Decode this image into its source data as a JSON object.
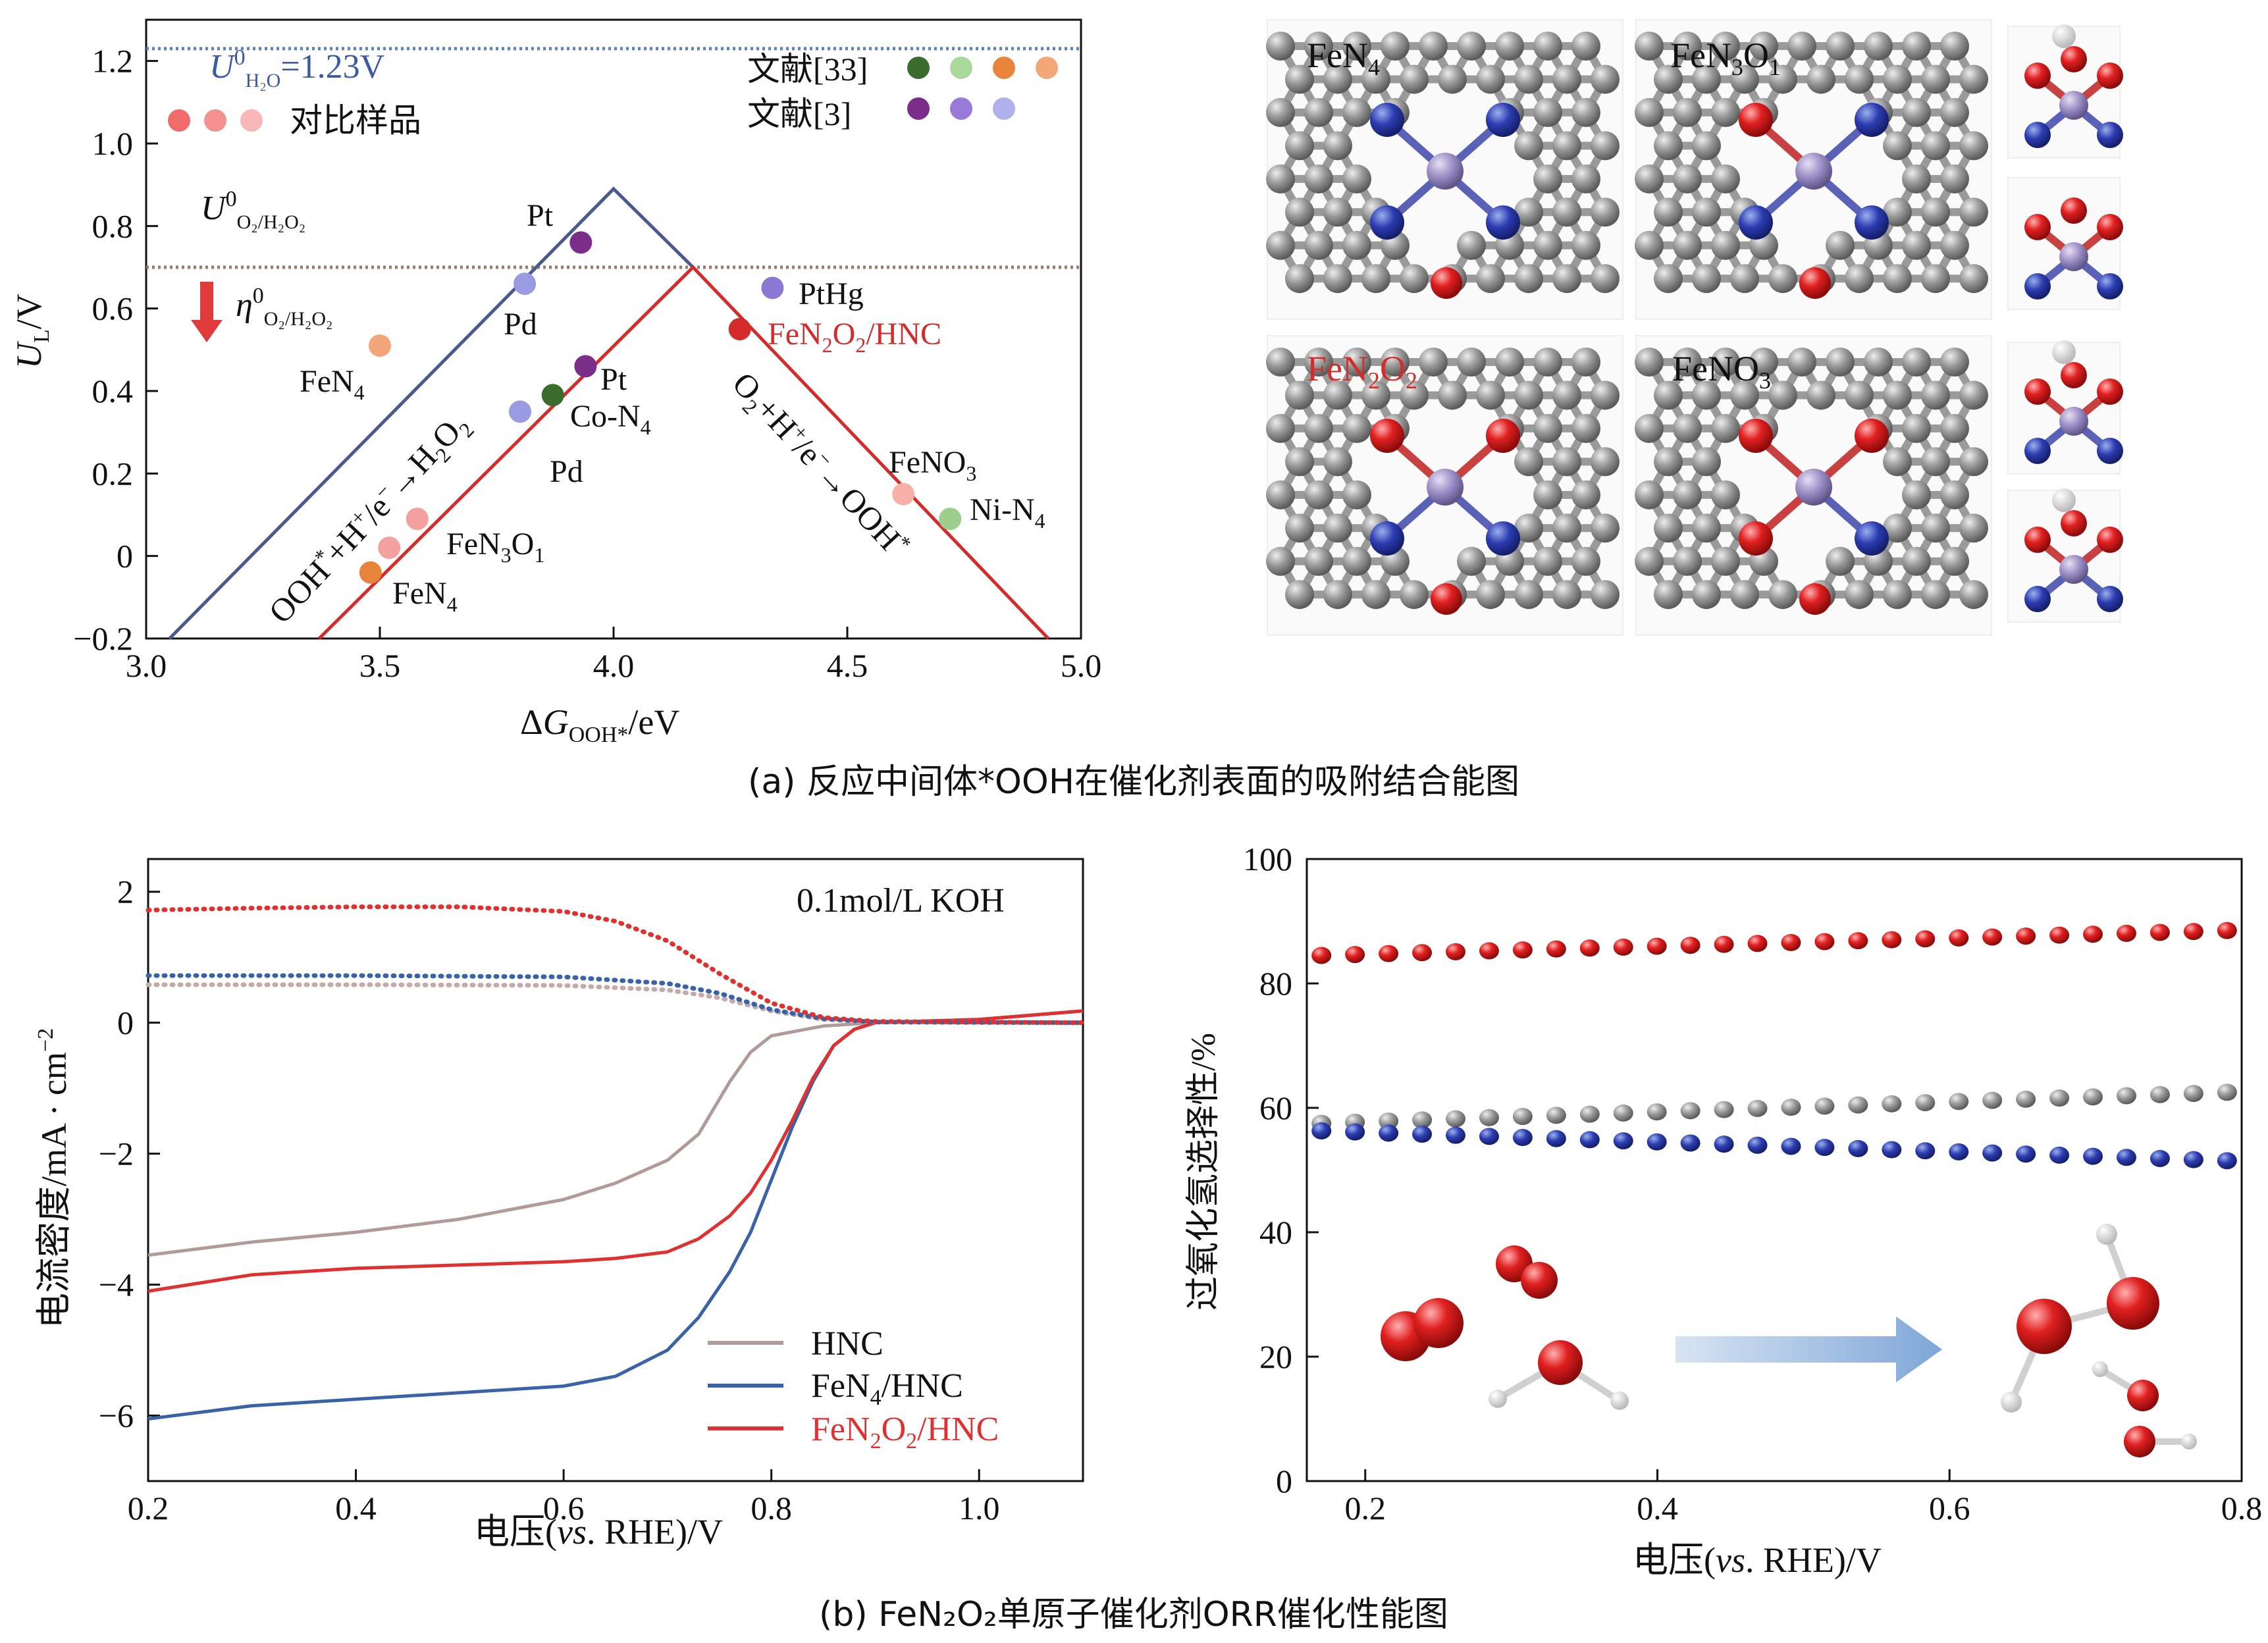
{
  "panel_a": {
    "caption": "(a) 反应中间体*OOH在催化剂表面的吸附结合能图",
    "top_line_label": "U⁰H₂O=1.23V",
    "mid_line_label": "U⁰O₂/H₂O₂",
    "eta_label": "η⁰O₂/H₂O₂",
    "legend": {
      "compare": "对比样品",
      "ref33": "文献[33]",
      "ref3": "文献[3]"
    },
    "line_labels": {
      "left": "OOH*+H⁺/e⁻→H₂O₂",
      "right": "O₂+H⁺/e⁻→OOH*"
    },
    "structures": {
      "s1": "FeN4",
      "s2": "FeN3O1",
      "s3": "FeN2O2",
      "s4": "FeNO3"
    }
  },
  "panel_b": {
    "caption": "(b) FeN₂O₂单原子催化剂ORR催化性能图",
    "annotation": "0.1mol/L KOH"
  },
  "chart_data": [
    {
      "type": "scatter",
      "xlabel": "ΔGOOH*/eV",
      "ylabel": "UL/V",
      "xlim": [
        3.0,
        5.0
      ],
      "ylim": [
        -0.2,
        1.3
      ],
      "xticks": [
        "3.0",
        "3.5",
        "4.0",
        "4.5",
        "5.0"
      ],
      "yticks": [
        "−0.2",
        "0",
        "0.2",
        "0.4",
        "0.6",
        "0.8",
        "1.0",
        "1.2"
      ],
      "reference_lines": [
        {
          "y": 1.23,
          "color": "#5b7fc0"
        },
        {
          "y": 0.7,
          "color": "#9a7a70"
        }
      ],
      "volcano_lines": [
        {
          "name": "blue",
          "color": "#4a5a8c",
          "points": [
            [
              3.05,
              -0.2
            ],
            [
              4.0,
              0.89
            ],
            [
              4.17,
              0.7
            ]
          ]
        },
        {
          "name": "red",
          "color": "#d42b2b",
          "points": [
            [
              3.37,
              -0.2
            ],
            [
              4.17,
              0.7
            ],
            [
              4.93,
              -0.2
            ]
          ]
        }
      ],
      "points": [
        {
          "label": "Pt",
          "x": 3.93,
          "y": 0.76,
          "color": "#7a2e8a"
        },
        {
          "label": "Pd",
          "x": 3.81,
          "y": 0.66,
          "color": "#9a9ae0"
        },
        {
          "label": "FeN4",
          "x": 3.5,
          "y": 0.51,
          "color": "#f2a679"
        },
        {
          "label": "Pt",
          "x": 3.94,
          "y": 0.46,
          "color": "#7a2e8a"
        },
        {
          "label": "Co-N4",
          "x": 3.87,
          "y": 0.39,
          "color": "#3c6b2e"
        },
        {
          "label": "Pd",
          "x": 3.8,
          "y": 0.35,
          "color": "#9a9ae0"
        },
        {
          "label": "PtHg",
          "x": 4.34,
          "y": 0.65,
          "color": "#8a78d4"
        },
        {
          "label": "FeN2O2/HNC",
          "x": 4.27,
          "y": 0.55,
          "color": "#d42b2b"
        },
        {
          "label": "FeNO3",
          "x": 4.62,
          "y": 0.15,
          "color": "#f6b2a8"
        },
        {
          "label": "Ni-N4",
          "x": 4.72,
          "y": 0.09,
          "color": "#9ccf8c"
        },
        {
          "label": "FeN3O1",
          "x": 3.58,
          "y": 0.09,
          "color": "#f5a0a0"
        },
        {
          "label": "",
          "x": 3.52,
          "y": 0.02,
          "color": "#f5a0a0"
        },
        {
          "label": "FeN4",
          "x": 3.48,
          "y": -0.04,
          "color": "#e8843c"
        }
      ],
      "legend": {
        "compare_colors": [
          "#f06b6b",
          "#f59090",
          "#f8b8b8"
        ],
        "ref33_colors": [
          "#3c6b2e",
          "#a8d99a",
          "#e8843c",
          "#f2a679"
        ],
        "ref3_colors": [
          "#7a2e8a",
          "#9a7ad8",
          "#b0b0ec"
        ]
      }
    },
    {
      "type": "line",
      "xlabel": "电压(vs. RHE)/V",
      "ylabel": "电流密度/mA·cm⁻²",
      "xlim": [
        0.2,
        1.1
      ],
      "ylim": [
        -7,
        2.5
      ],
      "xticks": [
        "0.2",
        "0.4",
        "0.6",
        "0.8",
        "1.0"
      ],
      "yticks": [
        "−6",
        "−4",
        "−2",
        "0",
        "2"
      ],
      "series": [
        {
          "name": "HNC",
          "color": "#b09a9a",
          "style": "solid",
          "x": [
            0.2,
            0.3,
            0.4,
            0.5,
            0.6,
            0.65,
            0.7,
            0.73,
            0.76,
            0.78,
            0.8,
            0.85,
            0.9,
            1.0,
            1.1
          ],
          "y": [
            -3.55,
            -3.35,
            -3.2,
            -3.0,
            -2.7,
            -2.45,
            -2.1,
            -1.7,
            -0.9,
            -0.45,
            -0.2,
            -0.05,
            0.0,
            0.05,
            0.18
          ]
        },
        {
          "name": "FeN4/HNC",
          "color": "#3a62a8",
          "style": "solid",
          "x": [
            0.2,
            0.3,
            0.4,
            0.5,
            0.6,
            0.65,
            0.7,
            0.73,
            0.76,
            0.78,
            0.8,
            0.82,
            0.84,
            0.86,
            0.88,
            0.9,
            1.0,
            1.1
          ],
          "y": [
            -6.05,
            -5.85,
            -5.75,
            -5.65,
            -5.55,
            -5.4,
            -5.0,
            -4.5,
            -3.8,
            -3.2,
            -2.4,
            -1.6,
            -0.9,
            -0.35,
            -0.1,
            0.0,
            0.05,
            0.18
          ]
        },
        {
          "name": "FeN2O2/HNC",
          "color": "#e03030",
          "style": "solid",
          "x": [
            0.2,
            0.3,
            0.4,
            0.5,
            0.6,
            0.65,
            0.7,
            0.73,
            0.76,
            0.78,
            0.8,
            0.82,
            0.84,
            0.86,
            0.88,
            0.9,
            1.0,
            1.1
          ],
          "y": [
            -4.1,
            -3.85,
            -3.75,
            -3.7,
            -3.65,
            -3.6,
            -3.5,
            -3.3,
            -2.95,
            -2.6,
            -2.1,
            -1.5,
            -0.85,
            -0.35,
            -0.1,
            0.0,
            0.05,
            0.18
          ]
        },
        {
          "name": "HNC ring",
          "color": "#c4aaaa",
          "style": "dotted",
          "x": [
            0.2,
            0.4,
            0.6,
            0.7,
            0.75,
            0.8,
            0.85,
            0.9,
            1.1
          ],
          "y": [
            0.58,
            0.58,
            0.57,
            0.5,
            0.38,
            0.18,
            0.05,
            0.01,
            0.0
          ]
        },
        {
          "name": "FeN4/HNC ring",
          "color": "#3a62a8",
          "style": "dotted",
          "x": [
            0.2,
            0.4,
            0.6,
            0.7,
            0.75,
            0.8,
            0.85,
            0.9,
            1.1
          ],
          "y": [
            0.72,
            0.72,
            0.7,
            0.6,
            0.45,
            0.2,
            0.06,
            0.01,
            0.0
          ]
        },
        {
          "name": "FeN2O2/HNC ring",
          "color": "#e03030",
          "style": "dotted",
          "x": [
            0.2,
            0.3,
            0.4,
            0.5,
            0.6,
            0.65,
            0.7,
            0.75,
            0.8,
            0.85,
            0.9,
            1.1
          ],
          "y": [
            1.72,
            1.75,
            1.77,
            1.77,
            1.7,
            1.55,
            1.25,
            0.75,
            0.3,
            0.08,
            0.02,
            0.0
          ]
        }
      ]
    },
    {
      "type": "scatter",
      "xlabel": "电压(vs. RHE)/V",
      "ylabel": "过氧化氢选择性/%",
      "xlim": [
        0.16,
        0.8
      ],
      "ylim": [
        0,
        100
      ],
      "xticks": [
        "0.2",
        "0.4",
        "0.6",
        "0.8"
      ],
      "yticks": [
        "0",
        "20",
        "40",
        "60",
        "80",
        "100"
      ],
      "series": [
        {
          "name": "FeN2O2/HNC",
          "color": "#e03030",
          "x_start": 0.17,
          "x_end": 0.79,
          "count": 28,
          "y_start": 84.5,
          "y_end": 88.5
        },
        {
          "name": "HNC",
          "color": "#9a9a9a",
          "x_start": 0.17,
          "x_end": 0.79,
          "count": 28,
          "y_start": 57.5,
          "y_end": 62.5
        },
        {
          "name": "FeN4/HNC",
          "color": "#2e5aa0",
          "x_start": 0.17,
          "x_end": 0.79,
          "count": 28,
          "y_start": 56.3,
          "y_end": 51.5
        }
      ]
    }
  ]
}
